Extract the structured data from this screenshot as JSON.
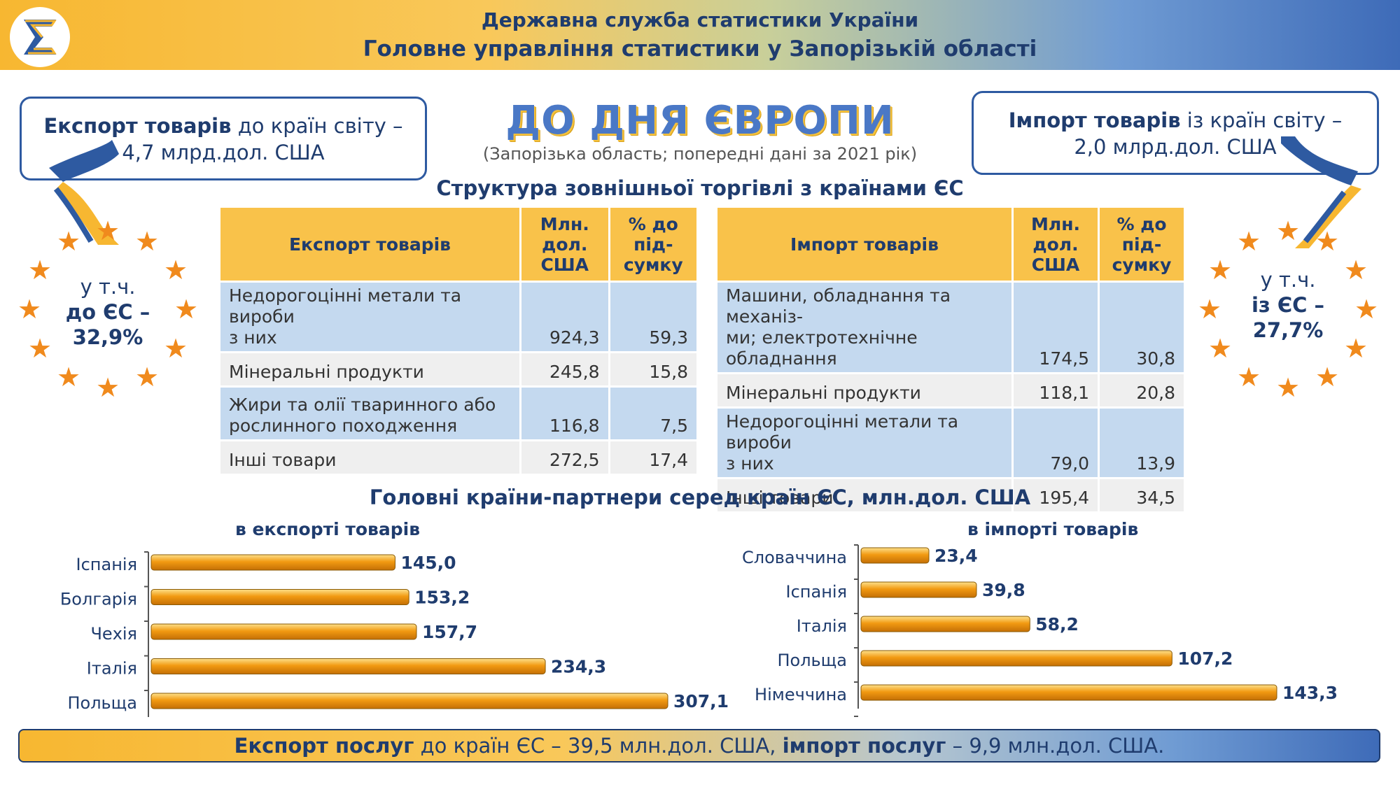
{
  "header": {
    "line1": "Державна служба статистики України",
    "line2": "Головне управління статистики у Запорізькій області",
    "logo_icon": "sigma-logo-icon"
  },
  "main_title": "ДО ДНЯ ЄВРОПИ",
  "subtitle": "(Запорізька область; попередні дані за 2021 рік)",
  "export_box": {
    "bold": "Експорт товарів",
    "rest": " до країн світу –",
    "line2": "4,7 млрд.дол. США"
  },
  "import_box": {
    "bold": "Імпорт товарів",
    "rest": " із країн світу –",
    "line2": "2,0 млрд.дол. США"
  },
  "eu_export": {
    "line1": "у т.ч.",
    "line2": "до ЄС –",
    "line3": "32,9%"
  },
  "eu_import": {
    "line1": "у т.ч.",
    "line2": "із ЄС –",
    "line3": "27,7%"
  },
  "structure_title": "Структура зовнішньої торгівлі з країнами ЄС",
  "export_table": {
    "headers": [
      "Експорт товарів",
      "Млн. дол. США",
      "% до під-сумку"
    ],
    "header_lines": [
      [
        "Експорт товарів"
      ],
      [
        "Млн.",
        "дол.",
        "США"
      ],
      [
        "% до",
        "під-",
        "сумку"
      ]
    ],
    "rows": [
      {
        "name1": "Недорогоцінні метали та вироби",
        "name2": "з них",
        "value": "924,3",
        "pct": "59,3"
      },
      {
        "name1": "Мінеральні продукти",
        "name2": "",
        "value": "245,8",
        "pct": "15,8"
      },
      {
        "name1": "Жири та олії тваринного або",
        "name2": "рослинного походження",
        "value": "116,8",
        "pct": "7,5"
      },
      {
        "name1": "Інші товари",
        "name2": "",
        "value": "272,5",
        "pct": "17,4"
      }
    ]
  },
  "import_table": {
    "headers": [
      "Імпорт товарів",
      "Млн. дол. США",
      "% до під-сумку"
    ],
    "header_lines": [
      [
        "Імпорт товарів"
      ],
      [
        "Млн.",
        "дол.",
        "США"
      ],
      [
        "% до",
        "під-",
        "сумку"
      ]
    ],
    "rows": [
      {
        "name1": "Машини, обладнання та механіз-",
        "name2": "ми; електротехнічне обладнання",
        "value": "174,5",
        "pct": "30,8"
      },
      {
        "name1": "Мінеральні продукти",
        "name2": "",
        "value": "118,1",
        "pct": "20,8"
      },
      {
        "name1": "Недорогоцінні метали та вироби",
        "name2": "з них",
        "value": "79,0",
        "pct": "13,9"
      },
      {
        "name1": "Інші товари",
        "name2": "",
        "value": "195,4",
        "pct": "34,5"
      }
    ]
  },
  "partners_title": "Головні країни-партнери серед країн ЄС, млн.дол. США",
  "chart_data": [
    {
      "type": "bar",
      "orientation": "horizontal",
      "title": "в експорті товарів",
      "categories": [
        "Іспанія",
        "Болгарія",
        "Чехія",
        "Італія",
        "Польща"
      ],
      "values": [
        145.0,
        153.2,
        157.7,
        234.3,
        307.1
      ],
      "labels": [
        "145,0",
        "153,2",
        "157,7",
        "234,3",
        "307,1"
      ],
      "xlim": [
        0,
        307.1
      ],
      "grid": false,
      "bar_color": "#f29a12"
    },
    {
      "type": "bar",
      "orientation": "horizontal",
      "title": "в імпорті товарів",
      "categories": [
        "Словаччина",
        "Іспанія",
        "Італія",
        "Польща",
        "Німеччина"
      ],
      "values": [
        23.4,
        39.8,
        58.2,
        107.2,
        143.3
      ],
      "labels": [
        "23,4",
        "39,8",
        "58,2",
        "107,2",
        "143,3"
      ],
      "xlim": [
        0,
        143.3
      ],
      "grid": false,
      "bar_color": "#f29a12"
    }
  ],
  "bottom": {
    "b1": "Експорт послуг",
    "t1": " до країн ЄС – 39,5 млн.дол. США, ",
    "b2": "імпорт послуг",
    "t2": " –  9,9 млн.дол. США."
  },
  "colors": {
    "navy": "#1f3c6e",
    "gold": "#f9c24a",
    "blue_row": "#c4d9ef",
    "star": "#f08a1d",
    "bar": "#f29a12"
  }
}
